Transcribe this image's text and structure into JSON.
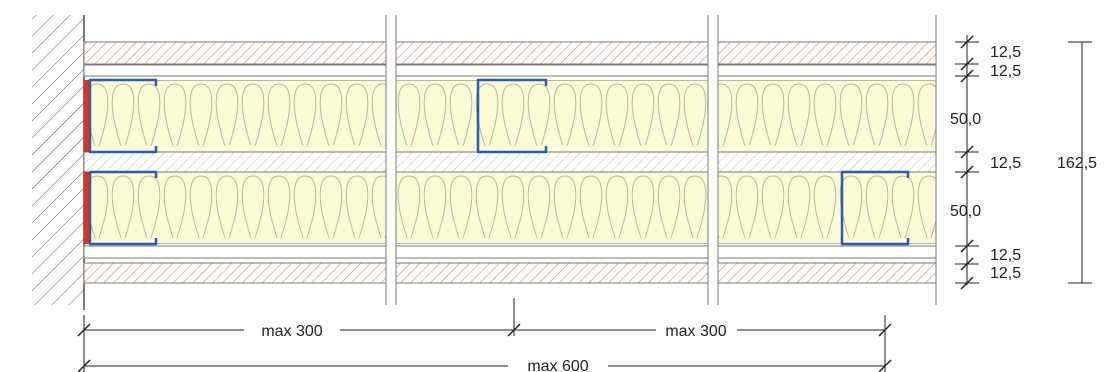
{
  "colors": {
    "background": "#ffffff",
    "insulation_fill": "#fbfbd6",
    "insulation_line": "#b8b8a0",
    "hatch_orange": "#d98a5a",
    "hatch_gray": "#c8c8c8",
    "outline": "#7a7a7a",
    "profile_blue": "#2a5cb0",
    "seal_red": "#e0301e",
    "wall_hatch": "#555555",
    "dimension_line": "#222222"
  },
  "layer_dimensions": {
    "labels": [
      "12,5",
      "12,5",
      "50,0",
      "12,5",
      "50,0",
      "12,5",
      "12,5"
    ],
    "total": "162,5"
  },
  "span_dimensions": {
    "left_span": "max 300",
    "right_span": "max 300",
    "total_span": "max 600"
  }
}
